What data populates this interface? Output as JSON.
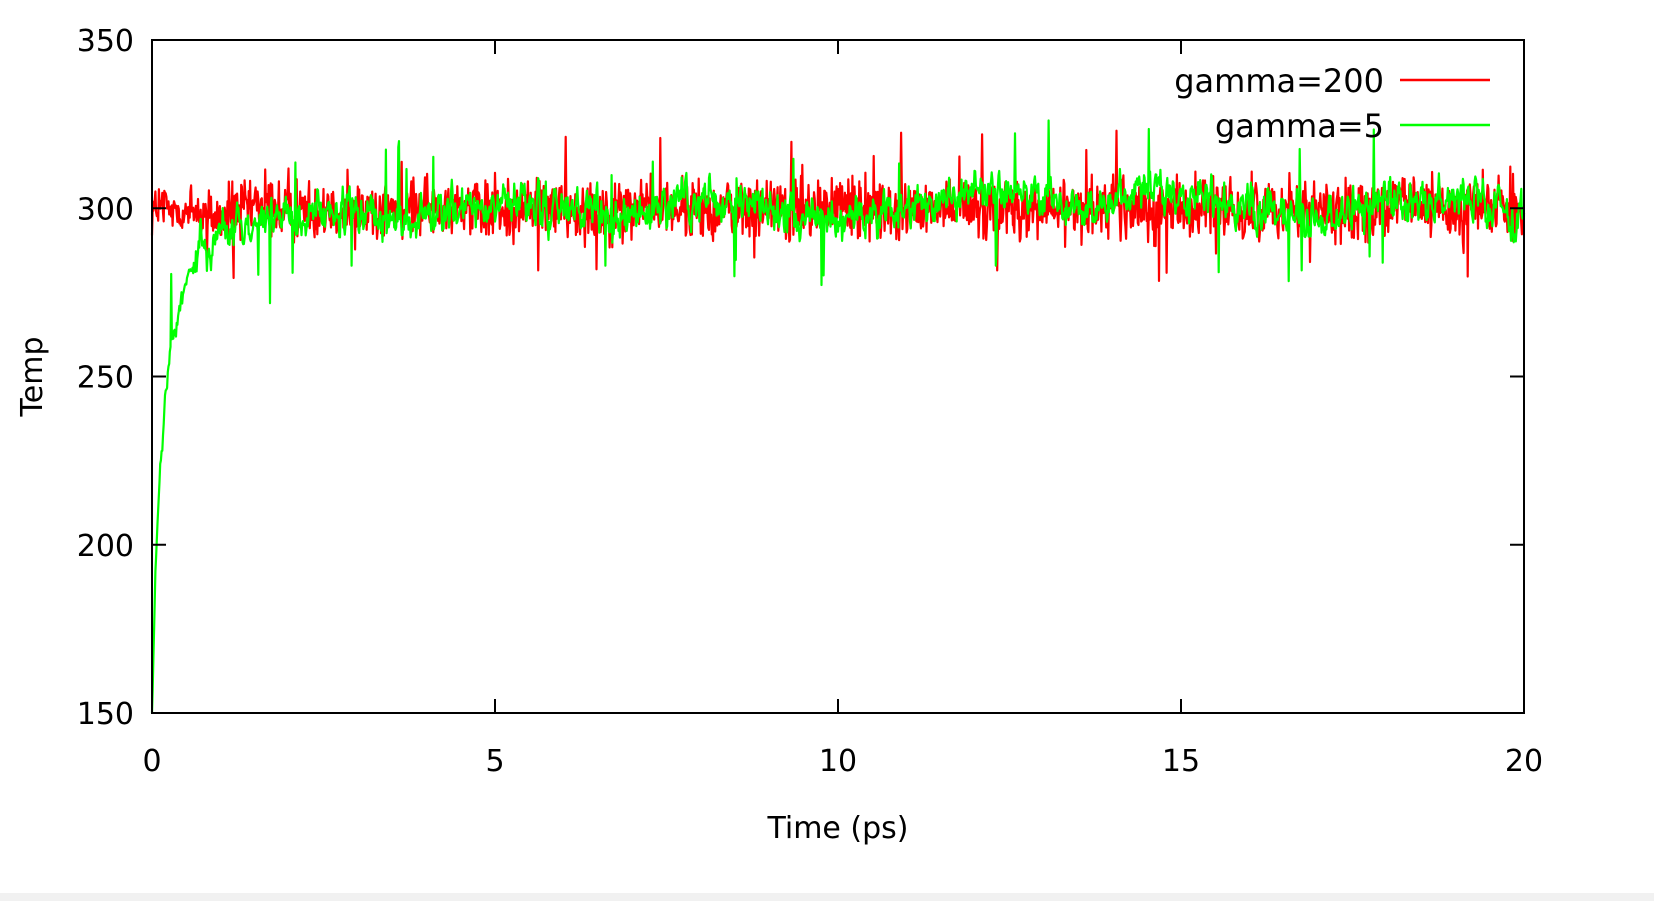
{
  "chart_data": {
    "type": "line",
    "xlabel": "Time (ps)",
    "ylabel": "Temp",
    "xlim": [
      0,
      20
    ],
    "ylim": [
      150,
      350
    ],
    "x_ticks": [
      "0",
      "5",
      "10",
      "15",
      "20"
    ],
    "y_ticks": [
      "150",
      "200",
      "250",
      "300",
      "350"
    ],
    "grid": false,
    "legend_position": "top-right",
    "series": [
      {
        "name": "gamma=200",
        "color": "#ff0000",
        "x": [
          0,
          0.5,
          1,
          1.5,
          2,
          2.5,
          3,
          3.5,
          4,
          4.5,
          5,
          5.5,
          6,
          6.5,
          7,
          7.5,
          8,
          8.5,
          9,
          9.5,
          10,
          10.5,
          11,
          11.5,
          12,
          12.5,
          13,
          13.5,
          14,
          14.5,
          15,
          15.5,
          16,
          16.5,
          17,
          17.5,
          18,
          18.5,
          19,
          19.5,
          20
        ],
        "y": [
          300,
          299,
          298,
          300,
          299,
          301,
          300,
          299,
          300,
          301,
          299,
          300,
          300,
          299,
          301,
          300,
          299,
          300,
          300,
          299,
          301,
          300,
          299,
          300,
          301,
          300,
          299,
          300,
          301,
          299,
          300,
          300,
          299,
          301,
          300,
          299,
          300,
          301,
          299,
          300,
          298
        ],
        "band": [
          283,
          318
        ]
      },
      {
        "name": "gamma=5",
        "color": "#00ff00",
        "x": [
          0,
          0.05,
          0.1,
          0.15,
          0.2,
          0.25,
          0.3,
          0.4,
          0.5,
          0.7,
          1,
          1.5,
          2,
          2.5,
          3,
          3.5,
          4,
          4.5,
          5,
          5.5,
          6,
          6.5,
          7,
          7.5,
          8,
          8.5,
          9,
          9.5,
          10,
          10.5,
          11,
          11.5,
          12,
          12.5,
          13,
          13.5,
          14,
          14.5,
          15,
          15.5,
          16,
          16.5,
          17,
          17.5,
          18,
          18.5,
          19,
          19.5,
          20
        ],
        "y": [
          150,
          190,
          215,
          230,
          245,
          255,
          262,
          270,
          278,
          288,
          293,
          296,
          297,
          298,
          297,
          296,
          298,
          299,
          300,
          301,
          300,
          297,
          298,
          301,
          303,
          302,
          300,
          298,
          296,
          297,
          300,
          303,
          307,
          306,
          302,
          300,
          301,
          305,
          304,
          302,
          300,
          299,
          298,
          300,
          302,
          303,
          302,
          301,
          296
        ],
        "band": [
          280,
          322
        ]
      }
    ]
  }
}
